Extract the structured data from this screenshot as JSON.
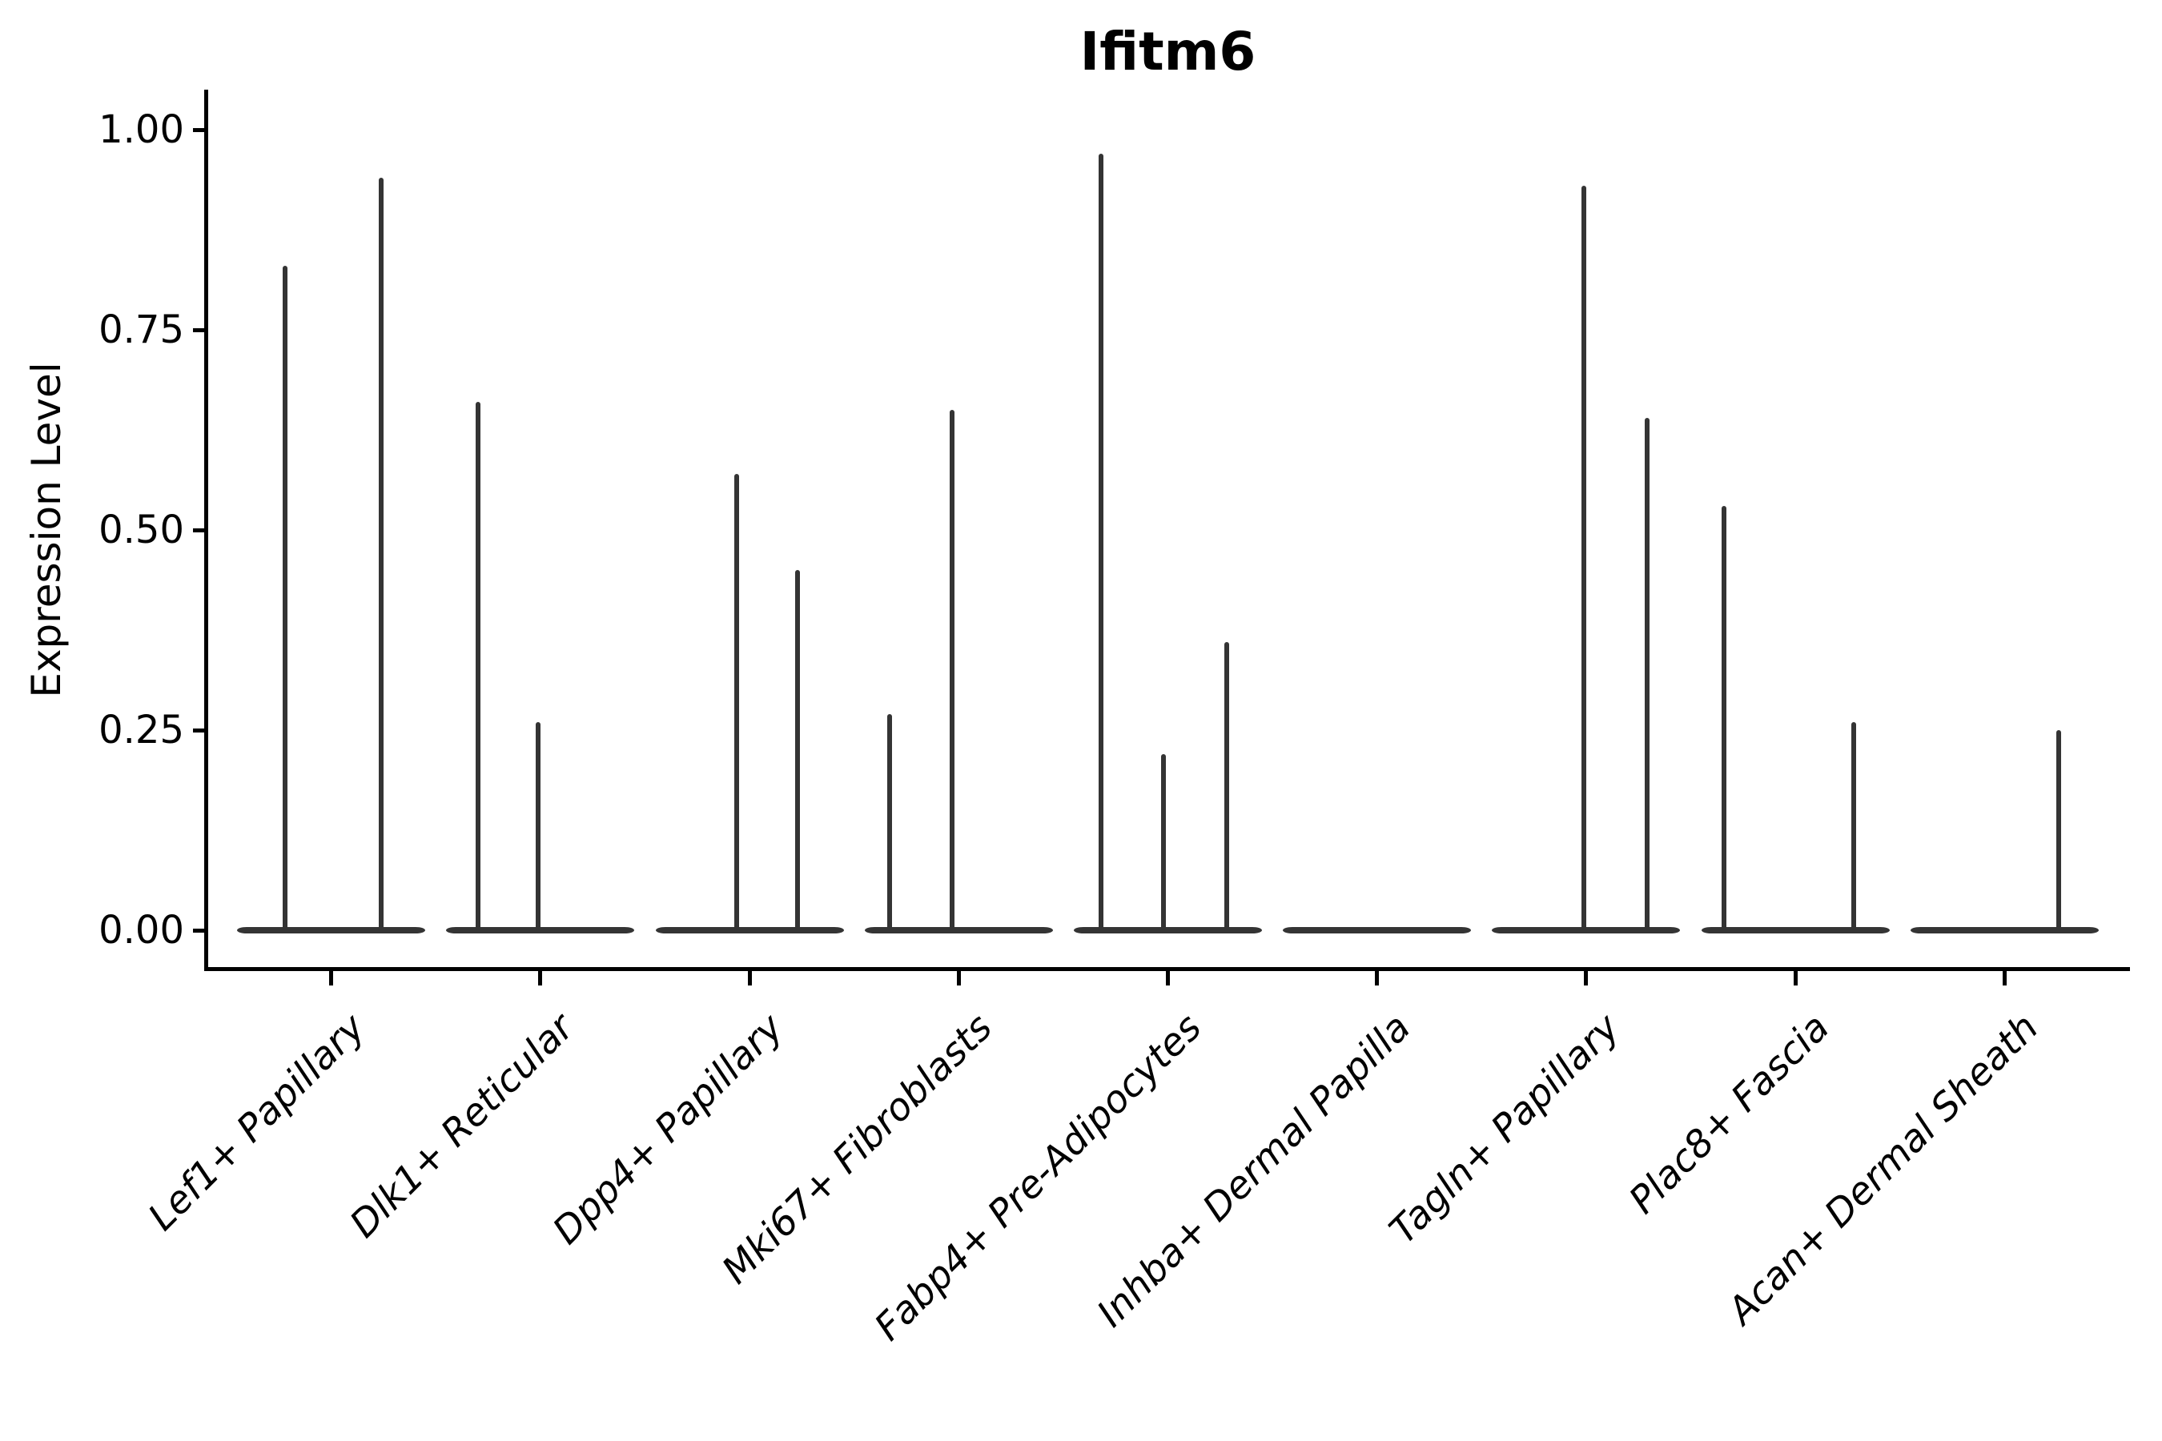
{
  "chart_data": {
    "type": "violin",
    "title": "Ifitm6",
    "xlabel": "",
    "ylabel": "Expression Level",
    "ylim": [
      -0.05,
      1.05
    ],
    "grid": false,
    "legend": "none",
    "background_color": "#ffffff",
    "violin_color": "#343434",
    "axis_color": "#000000",
    "y_axis": {
      "ticks": [
        {
          "label": "1.00",
          "value": 1.0
        },
        {
          "label": "0.75",
          "value": 0.75
        },
        {
          "label": "0.50",
          "value": 0.5
        },
        {
          "label": "0.25",
          "value": 0.25
        },
        {
          "label": "0.00",
          "value": 0.0
        }
      ]
    },
    "categories": [
      "Lef1+ Papillary",
      "Dlk1+ Reticular",
      "Dpp4+ Papillary",
      "Mki67+ Fibroblasts",
      "Fabp4+ Pre-Adipocytes",
      "Inhba+ Dermal Papilla",
      "Tagln+ Papillary",
      "Plac8+ Fascia",
      "Acan+ Dermal Sheath"
    ],
    "series": [
      {
        "name": "Lef1+ Papillary",
        "baseline_value": 0,
        "spikes": [
          {
            "offset": -0.22,
            "value": 0.83
          },
          {
            "offset": 0.24,
            "value": 0.94
          }
        ]
      },
      {
        "name": "Dlk1+ Reticular",
        "baseline_value": 0,
        "spikes": [
          {
            "offset": -0.3,
            "value": 0.66
          },
          {
            "offset": -0.01,
            "value": 0.26
          }
        ]
      },
      {
        "name": "Dpp4+ Papillary",
        "baseline_value": 0,
        "spikes": [
          {
            "offset": -0.06,
            "value": 0.57
          },
          {
            "offset": 0.23,
            "value": 0.45
          }
        ]
      },
      {
        "name": "Mki67+ Fibroblasts",
        "baseline_value": 0,
        "spikes": [
          {
            "offset": -0.33,
            "value": 0.27
          },
          {
            "offset": -0.03,
            "value": 0.65
          }
        ]
      },
      {
        "name": "Fabp4+ Pre-Adipocytes",
        "baseline_value": 0,
        "spikes": [
          {
            "offset": -0.32,
            "value": 0.97
          },
          {
            "offset": -0.02,
            "value": 0.22
          },
          {
            "offset": 0.28,
            "value": 0.36
          }
        ]
      },
      {
        "name": "Inhba+ Dermal Papilla",
        "baseline_value": 0,
        "spikes": []
      },
      {
        "name": "Tagln+ Papillary",
        "baseline_value": 0,
        "spikes": [
          {
            "offset": -0.01,
            "value": 0.93
          },
          {
            "offset": 0.29,
            "value": 0.64
          }
        ]
      },
      {
        "name": "Plac8+ Fascia",
        "baseline_value": 0,
        "spikes": [
          {
            "offset": -0.34,
            "value": 0.53
          },
          {
            "offset": 0.28,
            "value": 0.26
          }
        ]
      },
      {
        "name": "Acan+ Dermal Sheath",
        "baseline_value": 0,
        "spikes": [
          {
            "offset": 0.26,
            "value": 0.25
          }
        ]
      }
    ]
  }
}
